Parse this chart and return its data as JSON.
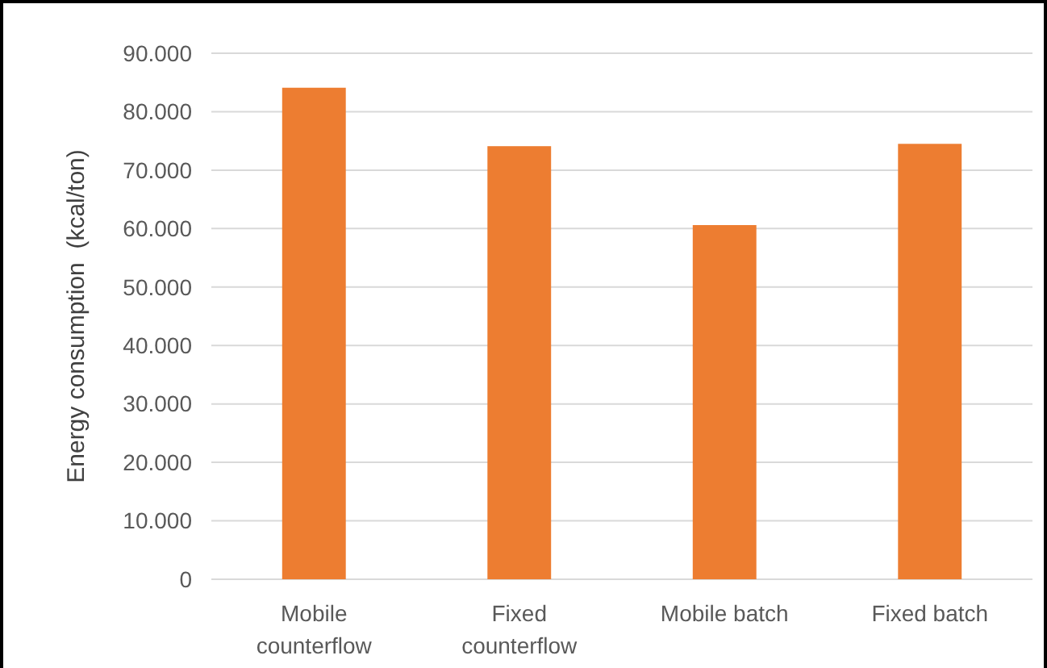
{
  "chart_data": {
    "type": "bar",
    "ylabel": "Energy consumption  (kcal/ton)",
    "categories": [
      "Mobile counterflow",
      "Fixed counterflow",
      "Mobile batch",
      "Fixed batch"
    ],
    "values": [
      84100,
      74100,
      60600,
      74500
    ],
    "color": "#ed7d31",
    "ylim": [
      0,
      90000
    ],
    "yticks": [
      0,
      {
        "value": 10000,
        "label": "10.000"
      },
      {
        "value": 20000,
        "label": "20.000"
      },
      {
        "value": 30000,
        "label": "30.000"
      },
      {
        "value": 40000,
        "label": "40.000"
      },
      {
        "value": 50000,
        "label": "50.000"
      },
      {
        "value": 60000,
        "label": "60.000"
      },
      {
        "value": 70000,
        "label": "70.000"
      },
      {
        "value": 80000,
        "label": "80.000"
      },
      {
        "value": 90000,
        "label": "90.000"
      }
    ],
    "grid": "y"
  }
}
